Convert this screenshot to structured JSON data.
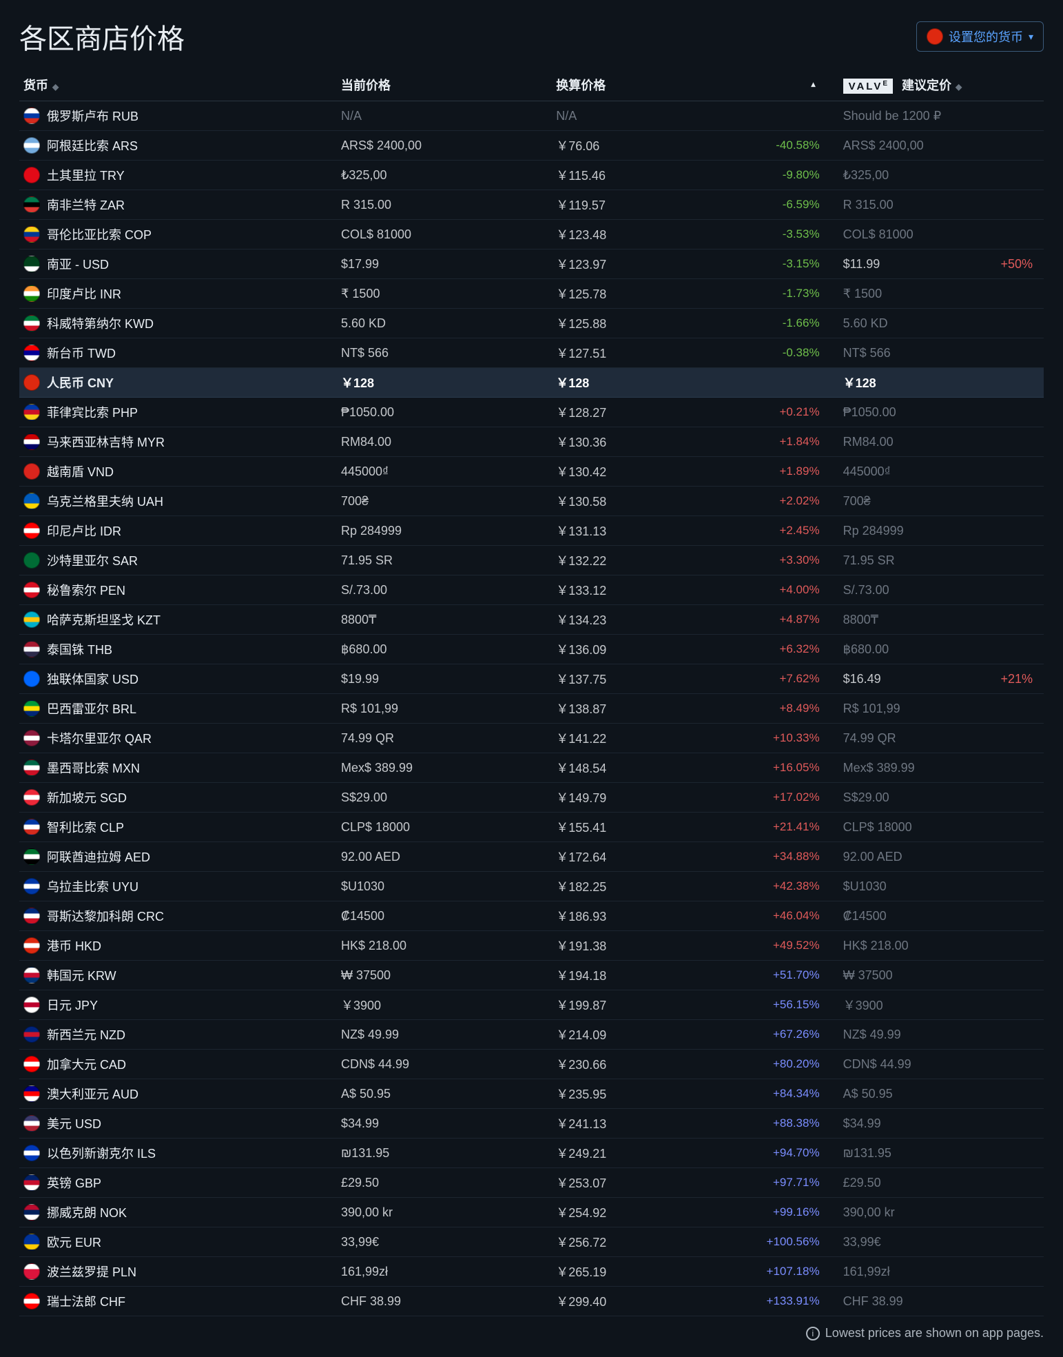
{
  "title": "各区商店价格",
  "currency_button": {
    "label": "设置您的货币",
    "flag_colors": [
      "#de2910",
      "#de2910"
    ]
  },
  "columns": {
    "currency": "货币",
    "current": "当前价格",
    "converted": "换算价格",
    "valve_logo": "VALV",
    "valve_logo_sup": "E",
    "valve_suffix": " 建议定价"
  },
  "footer": "Lowest prices are shown on app pages.",
  "pct_colors": {
    "neg": "#6fbf4b",
    "pos_low": "#e05a5a",
    "pos_high": "#7a8dff",
    "threshold_high": 50
  },
  "rows": [
    {
      "flag": [
        "#ffffff",
        "#0039a6",
        "#d52b1e"
      ],
      "name": "俄罗斯卢布 RUB",
      "current": "N/A",
      "current_dim": true,
      "converted": "N/A",
      "converted_dim": true,
      "pct": null,
      "suggested": "Should be 1200 ₽",
      "suggested_dim": true
    },
    {
      "flag": [
        "#74acdf",
        "#ffffff",
        "#74acdf"
      ],
      "name": "阿根廷比索 ARS",
      "current": "ARS$ 2400,00",
      "converted": "￥76.06",
      "pct": -40.58,
      "suggested": "ARS$ 2400,00",
      "suggested_dim": true
    },
    {
      "flag": [
        "#e30a17",
        "#e30a17",
        "#e30a17"
      ],
      "name": "土其里拉 TRY",
      "current": "₺325,00",
      "converted": "￥115.46",
      "pct": -9.8,
      "suggested": "₺325,00",
      "suggested_dim": true
    },
    {
      "flag": [
        "#007a4d",
        "#000000",
        "#de3831"
      ],
      "name": "南非兰特 ZAR",
      "current": "R 315.00",
      "converted": "￥119.57",
      "pct": -6.59,
      "suggested": "R 315.00",
      "suggested_dim": true
    },
    {
      "flag": [
        "#fcd116",
        "#003893",
        "#ce1126"
      ],
      "name": "哥伦比亚比索 COP",
      "current": "COL$ 81000",
      "converted": "￥123.48",
      "pct": -3.53,
      "suggested": "COL$ 81000",
      "suggested_dim": true
    },
    {
      "flag": [
        "#01411c",
        "#01411c",
        "#ffffff"
      ],
      "name": "南亚 - USD",
      "current": "$17.99",
      "converted": "￥123.97",
      "pct": -3.15,
      "suggested": "$11.99",
      "suggested_delta": "+50%"
    },
    {
      "flag": [
        "#ff9933",
        "#ffffff",
        "#138808"
      ],
      "name": "印度卢比 INR",
      "current": "₹ 1500",
      "converted": "￥125.78",
      "pct": -1.73,
      "suggested": "₹ 1500",
      "suggested_dim": true
    },
    {
      "flag": [
        "#007a3d",
        "#ffffff",
        "#ce1126"
      ],
      "name": "科威特第纳尔 KWD",
      "current": "5.60 KD",
      "converted": "￥125.88",
      "pct": -1.66,
      "suggested": "5.60 KD",
      "suggested_dim": true
    },
    {
      "flag": [
        "#fe0000",
        "#000095",
        "#ffffff"
      ],
      "name": "新台币 TWD",
      "current": "NT$ 566",
      "converted": "￥127.51",
      "pct": -0.38,
      "suggested": "NT$ 566",
      "suggested_dim": true
    },
    {
      "flag": [
        "#de2910",
        "#de2910",
        "#de2910"
      ],
      "name": "人民币 CNY",
      "current": "￥128",
      "converted": "￥128",
      "converted_dim": true,
      "pct": null,
      "suggested": "￥128",
      "suggested_dim": true,
      "highlight": true
    },
    {
      "flag": [
        "#0038a8",
        "#ce1126",
        "#fcd116"
      ],
      "name": "菲律宾比索 PHP",
      "current": "₱1050.00",
      "converted": "￥128.27",
      "pct": 0.21,
      "suggested": "₱1050.00",
      "suggested_dim": true
    },
    {
      "flag": [
        "#cc0001",
        "#ffffff",
        "#010066"
      ],
      "name": "马来西亚林吉特 MYR",
      "current": "RM84.00",
      "converted": "￥130.36",
      "pct": 1.84,
      "suggested": "RM84.00",
      "suggested_dim": true
    },
    {
      "flag": [
        "#da251d",
        "#da251d",
        "#da251d"
      ],
      "name": "越南盾 VND",
      "current": "445000₫",
      "converted": "￥130.42",
      "pct": 1.89,
      "suggested": "445000₫",
      "suggested_dim": true
    },
    {
      "flag": [
        "#005bbb",
        "#005bbb",
        "#ffd500"
      ],
      "name": "乌克兰格里夫纳 UAH",
      "current": "700₴",
      "converted": "￥130.58",
      "pct": 2.02,
      "suggested": "700₴",
      "suggested_dim": true
    },
    {
      "flag": [
        "#ff0000",
        "#ffffff",
        "#ff0000"
      ],
      "name": "印尼卢比 IDR",
      "current": "Rp 284999",
      "converted": "￥131.13",
      "pct": 2.45,
      "suggested": "Rp 284999",
      "suggested_dim": true
    },
    {
      "flag": [
        "#006c35",
        "#006c35",
        "#006c35"
      ],
      "name": "沙特里亚尔 SAR",
      "current": "71.95 SR",
      "converted": "￥132.22",
      "pct": 3.3,
      "suggested": "71.95 SR",
      "suggested_dim": true
    },
    {
      "flag": [
        "#d91023",
        "#ffffff",
        "#d91023"
      ],
      "name": "秘鲁索尔 PEN",
      "current": "S/.73.00",
      "converted": "￥133.12",
      "pct": 4.0,
      "suggested": "S/.73.00",
      "suggested_dim": true
    },
    {
      "flag": [
        "#00afca",
        "#fec50c",
        "#00afca"
      ],
      "name": "哈萨克斯坦坚戈 KZT",
      "current": "8800₸",
      "converted": "￥134.23",
      "pct": 4.87,
      "suggested": "8800₸",
      "suggested_dim": true
    },
    {
      "flag": [
        "#a51931",
        "#f4f5f8",
        "#2d2a4a"
      ],
      "name": "泰国铢 THB",
      "current": "฿680.00",
      "converted": "￥136.09",
      "pct": 6.32,
      "suggested": "฿680.00",
      "suggested_dim": true
    },
    {
      "flag": [
        "#0066ff",
        "#0066ff",
        "#0066ff"
      ],
      "name": "独联体国家 USD",
      "current": "$19.99",
      "converted": "￥137.75",
      "pct": 7.62,
      "suggested": "$16.49",
      "suggested_delta": "+21%"
    },
    {
      "flag": [
        "#009b3a",
        "#fedf00",
        "#002776"
      ],
      "name": "巴西雷亚尔 BRL",
      "current": "R$ 101,99",
      "converted": "￥138.87",
      "pct": 8.49,
      "suggested": "R$ 101,99",
      "suggested_dim": true
    },
    {
      "flag": [
        "#8d1b3d",
        "#ffffff",
        "#8d1b3d"
      ],
      "name": "卡塔尔里亚尔 QAR",
      "current": "74.99 QR",
      "converted": "￥141.22",
      "pct": 10.33,
      "suggested": "74.99 QR",
      "suggested_dim": true
    },
    {
      "flag": [
        "#006847",
        "#ffffff",
        "#ce1126"
      ],
      "name": "墨西哥比索 MXN",
      "current": "Mex$ 389.99",
      "converted": "￥148.54",
      "pct": 16.05,
      "suggested": "Mex$ 389.99",
      "suggested_dim": true
    },
    {
      "flag": [
        "#ed2939",
        "#ffffff",
        "#ed2939"
      ],
      "name": "新加坡元 SGD",
      "current": "S$29.00",
      "converted": "￥149.79",
      "pct": 17.02,
      "suggested": "S$29.00",
      "suggested_dim": true
    },
    {
      "flag": [
        "#0039a6",
        "#ffffff",
        "#d52b1e"
      ],
      "name": "智利比索 CLP",
      "current": "CLP$ 18000",
      "converted": "￥155.41",
      "pct": 21.41,
      "suggested": "CLP$ 18000",
      "suggested_dim": true
    },
    {
      "flag": [
        "#00732f",
        "#ffffff",
        "#000000"
      ],
      "name": "阿联酋迪拉姆 AED",
      "current": "92.00 AED",
      "converted": "￥172.64",
      "pct": 34.88,
      "suggested": "92.00 AED",
      "suggested_dim": true
    },
    {
      "flag": [
        "#0038a8",
        "#ffffff",
        "#0038a8"
      ],
      "name": "乌拉圭比索 UYU",
      "current": "$U1030",
      "converted": "￥182.25",
      "pct": 42.38,
      "suggested": "$U1030",
      "suggested_dim": true
    },
    {
      "flag": [
        "#002b7f",
        "#ffffff",
        "#ce1126"
      ],
      "name": "哥斯达黎加科朗 CRC",
      "current": "₡14500",
      "converted": "￥186.93",
      "pct": 46.04,
      "suggested": "₡14500",
      "suggested_dim": true
    },
    {
      "flag": [
        "#de2910",
        "#ffffff",
        "#de2910"
      ],
      "name": "港币 HKD",
      "current": "HK$ 218.00",
      "converted": "￥191.38",
      "pct": 49.52,
      "suggested": "HK$ 218.00",
      "suggested_dim": true
    },
    {
      "flag": [
        "#ffffff",
        "#c60c30",
        "#003478"
      ],
      "name": "韩国元 KRW",
      "current": "₩ 37500",
      "converted": "￥194.18",
      "pct": 51.7,
      "suggested": "₩ 37500",
      "suggested_dim": true
    },
    {
      "flag": [
        "#ffffff",
        "#bc002d",
        "#ffffff"
      ],
      "name": "日元 JPY",
      "current": "￥3900",
      "converted": "￥199.87",
      "pct": 56.15,
      "suggested": "￥3900",
      "suggested_dim": true
    },
    {
      "flag": [
        "#00247d",
        "#cc142b",
        "#00247d"
      ],
      "name": "新西兰元 NZD",
      "current": "NZ$ 49.99",
      "converted": "￥214.09",
      "pct": 67.26,
      "suggested": "NZ$ 49.99",
      "suggested_dim": true
    },
    {
      "flag": [
        "#ff0000",
        "#ffffff",
        "#ff0000"
      ],
      "name": "加拿大元 CAD",
      "current": "CDN$ 44.99",
      "converted": "￥230.66",
      "pct": 80.2,
      "suggested": "CDN$ 44.99",
      "suggested_dim": true
    },
    {
      "flag": [
        "#00008b",
        "#ff0000",
        "#ffffff"
      ],
      "name": "澳大利亚元 AUD",
      "current": "A$ 50.95",
      "converted": "￥235.95",
      "pct": 84.34,
      "suggested": "A$ 50.95",
      "suggested_dim": true
    },
    {
      "flag": [
        "#3c3b6e",
        "#ffffff",
        "#b22234"
      ],
      "name": "美元 USD",
      "current": "$34.99",
      "converted": "￥241.13",
      "pct": 88.38,
      "suggested": "$34.99",
      "suggested_dim": true
    },
    {
      "flag": [
        "#0038b8",
        "#ffffff",
        "#0038b8"
      ],
      "name": "以色列新谢克尔 ILS",
      "current": "₪131.95",
      "converted": "￥249.21",
      "pct": 94.7,
      "suggested": "₪131.95",
      "suggested_dim": true
    },
    {
      "flag": [
        "#012169",
        "#c8102e",
        "#ffffff"
      ],
      "name": "英镑 GBP",
      "current": "£29.50",
      "converted": "￥253.07",
      "pct": 97.71,
      "suggested": "£29.50",
      "suggested_dim": true
    },
    {
      "flag": [
        "#ba0c2f",
        "#00205b",
        "#ffffff"
      ],
      "name": "挪威克朗 NOK",
      "current": "390,00 kr",
      "converted": "￥254.92",
      "pct": 99.16,
      "suggested": "390,00 kr",
      "suggested_dim": true
    },
    {
      "flag": [
        "#003399",
        "#003399",
        "#ffcc00"
      ],
      "name": "欧元 EUR",
      "current": "33,99€",
      "converted": "￥256.72",
      "pct": 100.56,
      "suggested": "33,99€",
      "suggested_dim": true
    },
    {
      "flag": [
        "#ffffff",
        "#dc143c",
        "#dc143c"
      ],
      "name": "波兰兹罗提 PLN",
      "current": "161,99zł",
      "converted": "￥265.19",
      "pct": 107.18,
      "suggested": "161,99zł",
      "suggested_dim": true
    },
    {
      "flag": [
        "#ff0000",
        "#ffffff",
        "#ff0000"
      ],
      "name": "瑞士法郎 CHF",
      "current": "CHF 38.99",
      "converted": "￥299.40",
      "pct": 133.91,
      "suggested": "CHF 38.99",
      "suggested_dim": true
    }
  ]
}
